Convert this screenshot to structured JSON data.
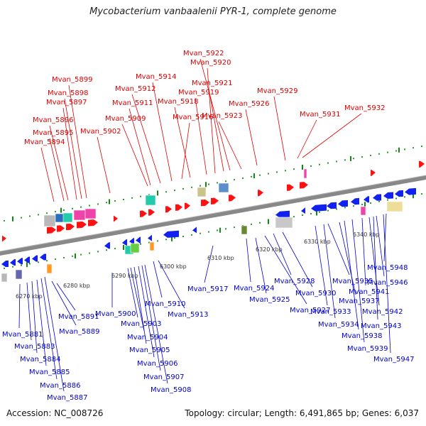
{
  "title": "Mycobacterium vanbaalenii PYR-1, complete genome",
  "footer": {
    "accession": "Accession: NC_008726",
    "summary": "Topology: circular; Length: 6,491,865 bp; Genes: 6,037"
  },
  "colors": {
    "forward_label": "#dd0000",
    "reverse_label": "#0000cc",
    "forward_gene": "#ff1111",
    "reverse_gene": "#1122ee",
    "backbone": "#888888",
    "tick": "#2a9a2a"
  },
  "scale_labels": [
    "6270 kbp",
    "6280 kbp",
    "6290 kbp",
    "6300 kbp",
    "6310 kbp",
    "6320 kbp",
    "6330 kbp",
    "6340 kbp"
  ],
  "forward_labels": [
    "Mvan_5894",
    "Mvan_5895",
    "Mvan_5896",
    "Mvan_5897",
    "Mvan_5898",
    "Mvan_5899",
    "Mvan_5902",
    "Mvan_5909",
    "Mvan_5911",
    "Mvan_5912",
    "Mvan_5914",
    "Mvan_5916",
    "Mvan_5918",
    "Mvan_5919",
    "Mvan_5920",
    "Mvan_5921",
    "Mvan_5922",
    "Mvan_5923",
    "Mvan_5926",
    "Mvan_5929",
    "Mvan_5931",
    "Mvan_5932"
  ],
  "reverse_labels": [
    "Mvan_5881",
    "Mvan_5883",
    "Mvan_5884",
    "Mvan_5885",
    "Mvan_5886",
    "Mvan_5887",
    "Mvan_5889",
    "Mvan_5891",
    "Mvan_5900",
    "Mvan_5903",
    "Mvan_5904",
    "Mvan_5905",
    "Mvan_5906",
    "Mvan_5907",
    "Mvan_5908",
    "Mvan_5910",
    "Mvan_5913",
    "Mvan_5917",
    "Mvan_5924",
    "Mvan_5925",
    "Mvan_5927",
    "Mvan_5928",
    "Mvan_5930",
    "Mvan_5933",
    "Mvan_5934",
    "Mvan_5935",
    "Mvan_5937",
    "Mvan_5938",
    "Mvan_5939",
    "Mvan_5941",
    "Mvan_5942",
    "Mvan_5943",
    "Mvan_5946",
    "Mvan_5947",
    "Mvan_5948"
  ]
}
